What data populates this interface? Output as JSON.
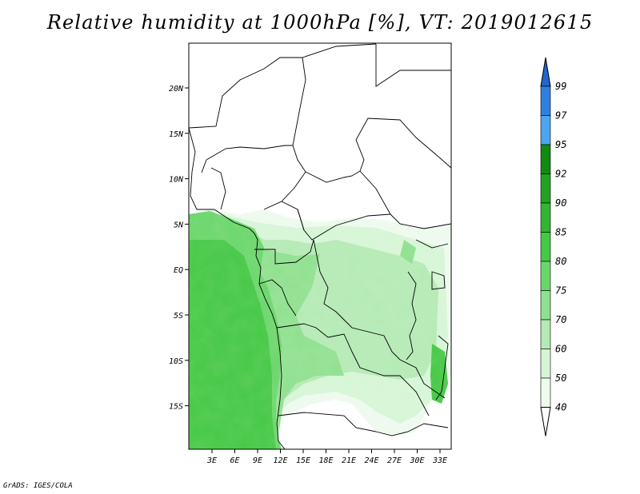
{
  "title": "Relative humidity at 1000hPa [%], VT: 2019012615",
  "credit": "GrADS: IGES/COLA",
  "map": {
    "lon_ticks": [
      "3E",
      "6E",
      "9E",
      "12E",
      "15E",
      "18E",
      "21E",
      "24E",
      "27E",
      "30E",
      "33E"
    ],
    "lat_ticks": [
      "20N",
      "15N",
      "10N",
      "5N",
      "EQ",
      "5S",
      "10S",
      "15S"
    ]
  },
  "colorbar": {
    "labels": [
      "99",
      "97",
      "95",
      "92",
      "90",
      "85",
      "80",
      "75",
      "70",
      "60",
      "50",
      "40"
    ],
    "colors": [
      "#2266cc",
      "#2e7fe0",
      "#4fa4ee",
      "#118a11",
      "#23a123",
      "#33b533",
      "#45c845",
      "#6ad66a",
      "#8fe08f",
      "#b4eab4",
      "#d6f5d6",
      "#eefaee",
      "#ffffff"
    ]
  }
}
